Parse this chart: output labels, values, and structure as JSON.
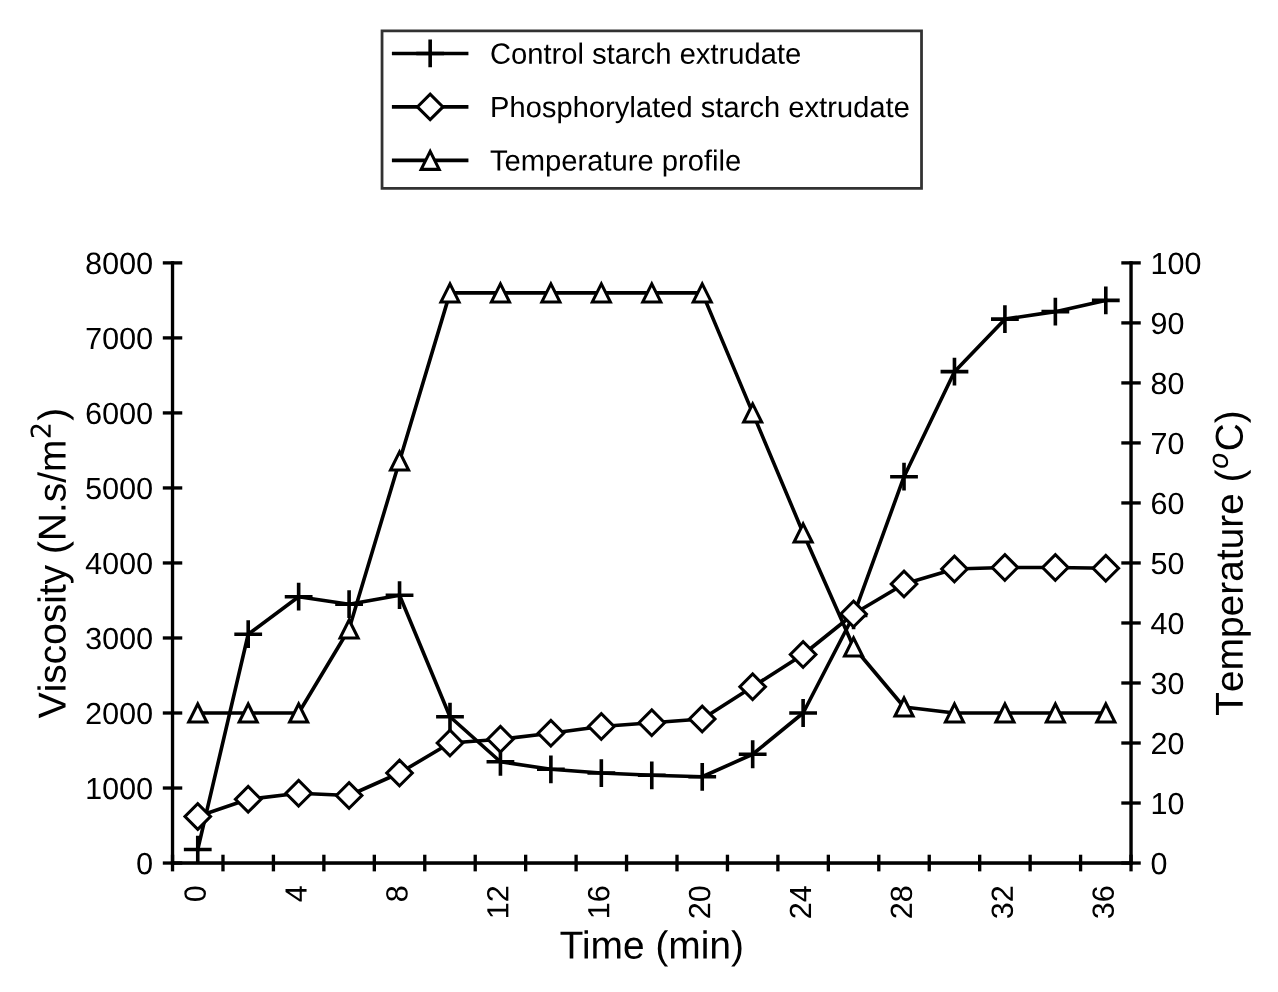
{
  "chart_data": {
    "type": "line",
    "xlabel": "Time (min)",
    "ylabel": "Viscosity (N.s/m$^{2}$)",
    "y2label": "Temperature ($^{o}$C)",
    "categories": [
      "0",
      null,
      "4",
      null,
      "8",
      null,
      "12",
      null,
      "16",
      null,
      "20",
      null,
      "24",
      null,
      "28",
      null,
      "32",
      null,
      "36"
    ],
    "ylim": [
      0,
      8000
    ],
    "yticks": [
      0,
      1000,
      2000,
      3000,
      4000,
      5000,
      6000,
      7000,
      8000
    ],
    "y2lim": [
      0,
      100
    ],
    "y2ticks": [
      0,
      10,
      20,
      30,
      40,
      50,
      60,
      70,
      80,
      90,
      100
    ],
    "grid": false,
    "legend": "top",
    "line_style": "solid",
    "series": [
      {
        "name": "Control starch extrudate",
        "color": "#000000",
        "marker": "cross",
        "values": [
          180,
          3050,
          3550,
          3450,
          3570,
          1950,
          1350,
          1250,
          1200,
          1170,
          1150,
          1450,
          2000,
          3300,
          5150,
          6550,
          7250,
          7350,
          7500
        ]
      },
      {
        "name": "Phosphorylated starch extrudate",
        "color": "#000000",
        "marker": "diamond",
        "values": [
          620,
          850,
          930,
          900,
          1200,
          1600,
          1650,
          1730,
          1820,
          1870,
          1920,
          2350,
          2780,
          3320,
          3720,
          3920,
          3940,
          3940,
          3930
        ]
      },
      {
        "name": "Temperature profile",
        "color": "#000000",
        "marker": "triangle",
        "axis": "y2",
        "values": [
          25,
          25,
          25,
          39,
          67,
          95,
          95,
          95,
          95,
          95,
          95,
          75,
          55,
          36,
          26,
          25,
          25,
          25,
          25
        ]
      }
    ]
  }
}
